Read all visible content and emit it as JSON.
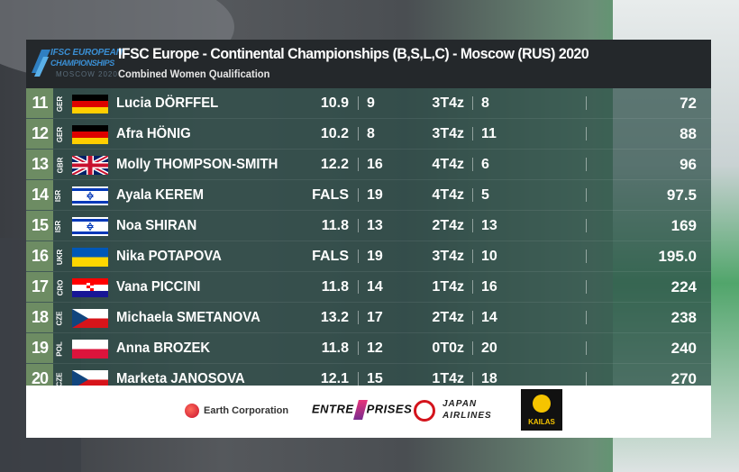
{
  "header": {
    "title": "IFSC Europe - Continental Championships (B,S,L,C) - Moscow (RUS) 2020",
    "subtitle": "Combined Women Qualification",
    "logo": {
      "line1": "IFSC EUROPEAN",
      "line2": "CHAMPIONSHIPS",
      "line3": "MOSCOW 2020",
      "icon": "ifsc-climber-icon"
    }
  },
  "results": [
    {
      "rank": "11",
      "nat": "GER",
      "flag": "germany",
      "name": "Lucia DÖRFFEL",
      "speed": "10.9",
      "speed_rank": "9",
      "boulder": "3T4z",
      "boulder_rank": "8",
      "total": "72"
    },
    {
      "rank": "12",
      "nat": "GER",
      "flag": "germany",
      "name": "Afra HÖNIG",
      "speed": "10.2",
      "speed_rank": "8",
      "boulder": "3T4z",
      "boulder_rank": "11",
      "total": "88"
    },
    {
      "rank": "13",
      "nat": "GBR",
      "flag": "uk",
      "name": "Molly THOMPSON-SMITH",
      "speed": "12.2",
      "speed_rank": "16",
      "boulder": "4T4z",
      "boulder_rank": "6",
      "total": "96"
    },
    {
      "rank": "14",
      "nat": "ISR",
      "flag": "israel",
      "name": "Ayala KEREM",
      "speed": "FALS",
      "speed_rank": "19",
      "boulder": "4T4z",
      "boulder_rank": "5",
      "total": "97.5"
    },
    {
      "rank": "15",
      "nat": "ISR",
      "flag": "israel",
      "name": "Noa SHIRAN",
      "speed": "11.8",
      "speed_rank": "13",
      "boulder": "2T4z",
      "boulder_rank": "13",
      "total": "169"
    },
    {
      "rank": "16",
      "nat": "UKR",
      "flag": "ukraine",
      "name": "Nika POTAPOVA",
      "speed": "FALS",
      "speed_rank": "19",
      "boulder": "3T4z",
      "boulder_rank": "10",
      "total": "195.0"
    },
    {
      "rank": "17",
      "nat": "CRO",
      "flag": "croatia",
      "name": "Vana PICCINI",
      "speed": "11.8",
      "speed_rank": "14",
      "boulder": "1T4z",
      "boulder_rank": "16",
      "total": "224"
    },
    {
      "rank": "18",
      "nat": "CZE",
      "flag": "czech",
      "name": "Michaela SMETANOVA",
      "speed": "13.2",
      "speed_rank": "17",
      "boulder": "2T4z",
      "boulder_rank": "14",
      "total": "238"
    },
    {
      "rank": "19",
      "nat": "POL",
      "flag": "poland",
      "name": "Anna BROZEK",
      "speed": "11.8",
      "speed_rank": "12",
      "boulder": "0T0z",
      "boulder_rank": "20",
      "total": "240"
    },
    {
      "rank": "20",
      "nat": "CZE",
      "flag": "czech",
      "name": "Marketa JANOSOVA",
      "speed": "12.1",
      "speed_rank": "15",
      "boulder": "1T4z",
      "boulder_rank": "18",
      "total": "270"
    }
  ],
  "sponsors": {
    "earth": "Earth Corporation",
    "entre_a": "ENTRE",
    "entre_b": "PRISES",
    "jal_1": "JAPAN",
    "jal_2": "AIRLINES",
    "kailas": "KAILAS"
  },
  "colors": {
    "header_bg": "#24282b",
    "row_bg": "#2c4e48",
    "rank_bg": "#6d8c63",
    "text": "#ffffff"
  }
}
